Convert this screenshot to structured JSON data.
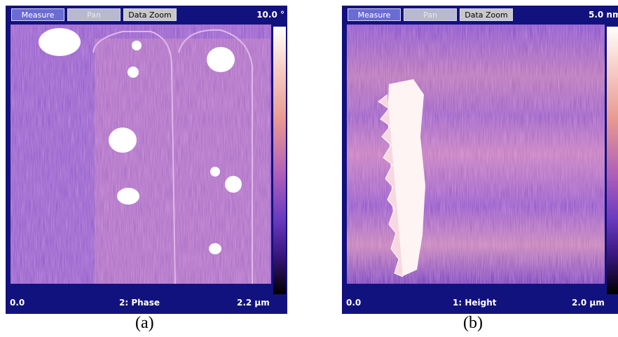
{
  "panels": [
    {
      "buttons": [
        "Measure",
        "Pan",
        "Data Zoom"
      ],
      "scale_max": "10.0 °",
      "origin": "0.0",
      "channel": "2: Phase",
      "size": "2.2 µm",
      "caption": "(a)"
    },
    {
      "buttons": [
        "Measure",
        "Pan",
        "Data Zoom"
      ],
      "scale_max": "5.0 nm",
      "origin": "0.0",
      "channel": "1: Height",
      "size": "2.0 µm",
      "caption": "(b)"
    }
  ]
}
